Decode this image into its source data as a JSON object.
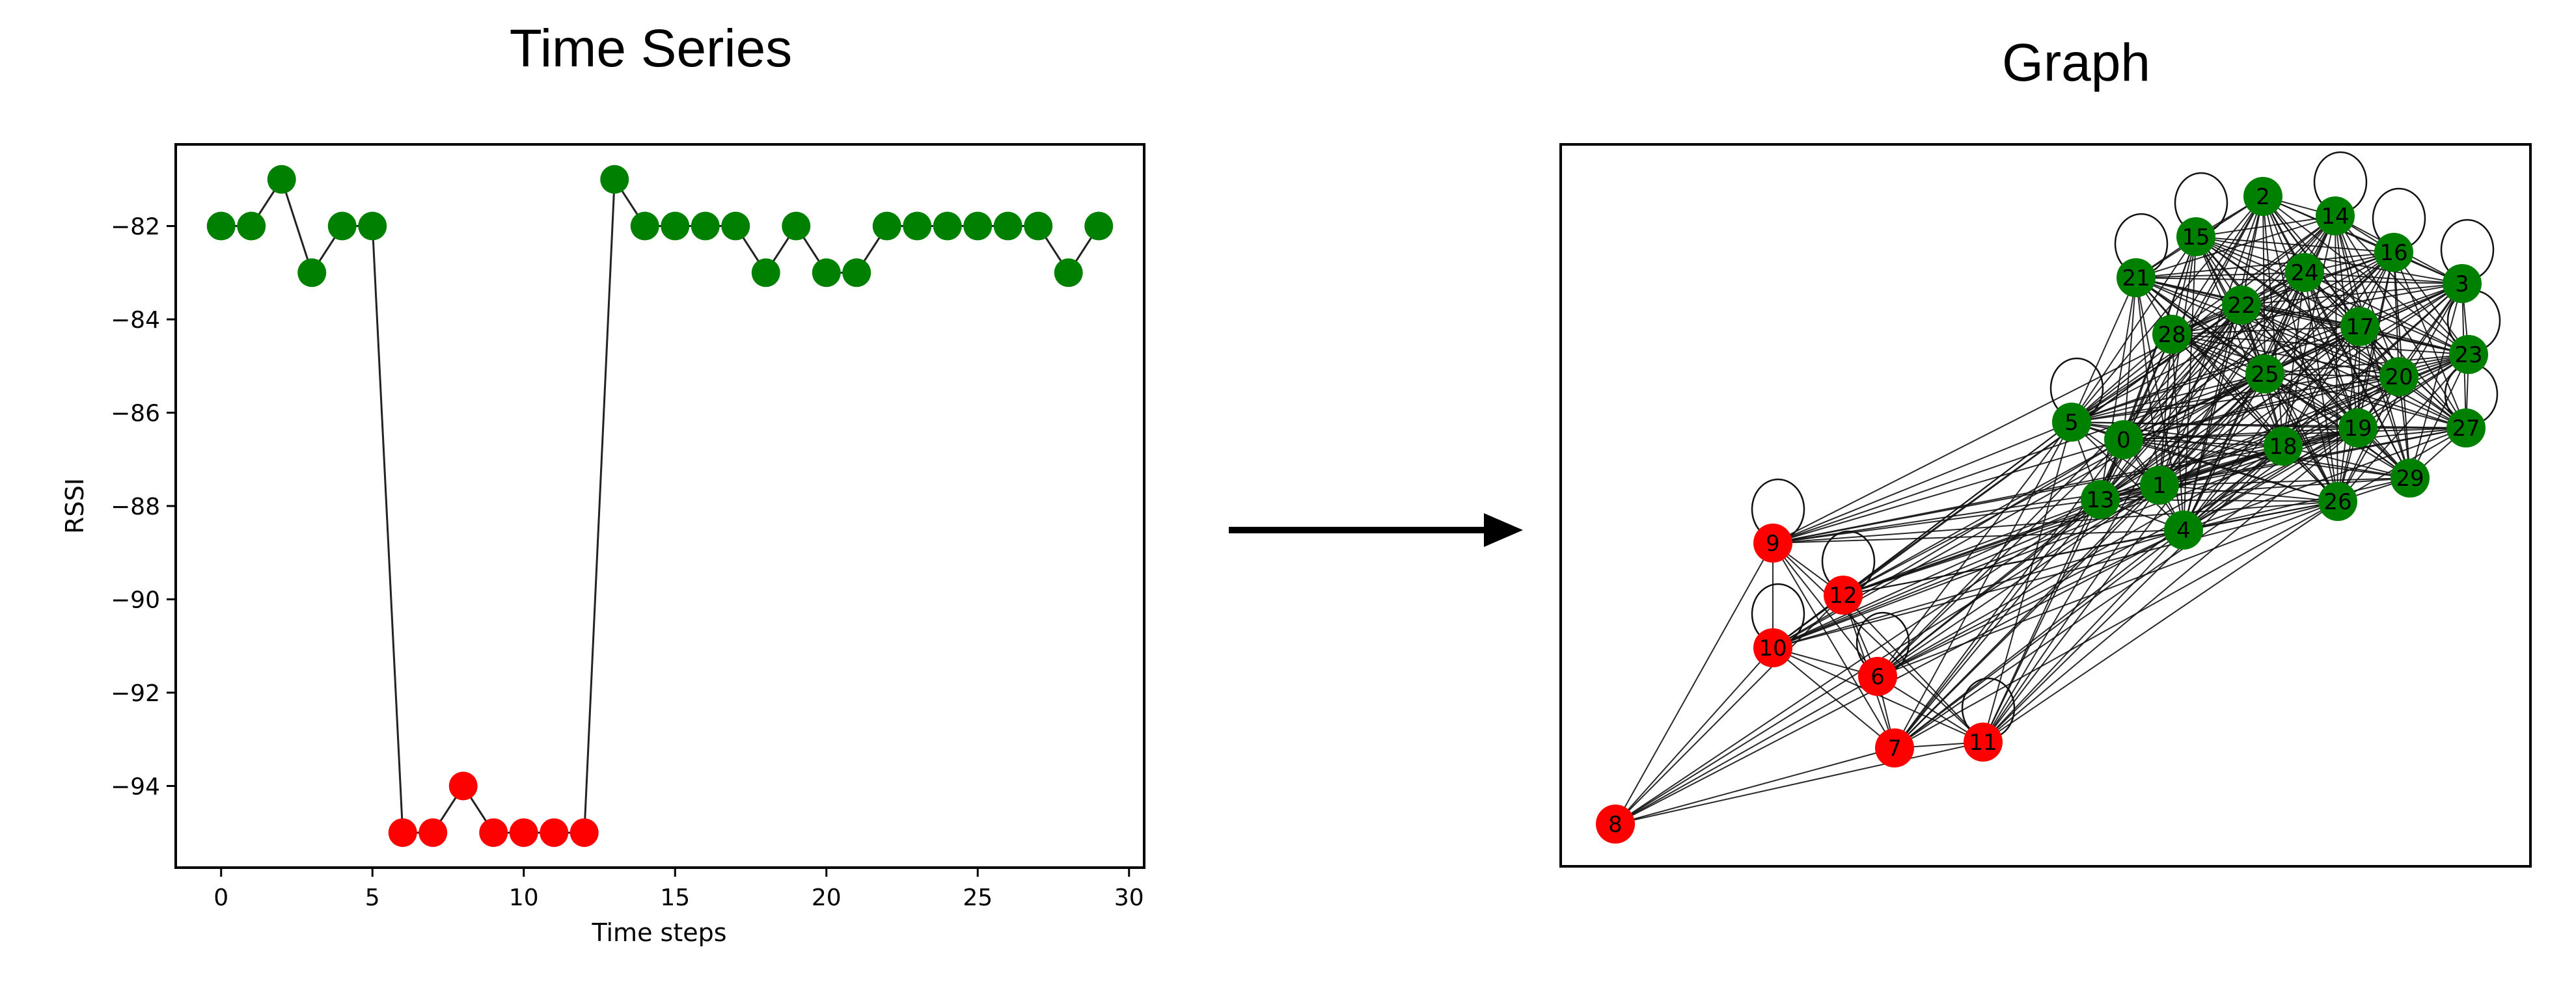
{
  "titles": {
    "left": "Time Series",
    "right": "Graph"
  },
  "colors": {
    "normal": "#008000",
    "anomaly": "#ff0000",
    "line": "#000000"
  },
  "chart_data": [
    {
      "type": "line",
      "title": "Time Series",
      "xlabel": "Time steps",
      "ylabel": "RSSI",
      "xlim": [
        -1.5,
        30.5
      ],
      "ylim": [
        -95.75,
        -80.25
      ],
      "xticks": [
        0,
        5,
        10,
        15,
        20,
        25,
        30
      ],
      "yticks": [
        -82,
        -84,
        -86,
        -88,
        -90,
        -92,
        -94
      ],
      "grid": false,
      "x": [
        0,
        1,
        2,
        3,
        4,
        5,
        6,
        7,
        8,
        9,
        10,
        11,
        12,
        13,
        14,
        15,
        16,
        17,
        18,
        19,
        20,
        21,
        22,
        23,
        24,
        25,
        26,
        27,
        28,
        29
      ],
      "values": [
        -82,
        -82,
        -81,
        -83,
        -82,
        -82,
        -95,
        -95,
        -94,
        -95,
        -95,
        -95,
        -95,
        -81,
        -82,
        -82,
        -82,
        -82,
        -83,
        -82,
        -83,
        -83,
        -82,
        -82,
        -82,
        -82,
        -82,
        -82,
        -83,
        -82
      ],
      "point_classes": [
        "normal",
        "normal",
        "normal",
        "normal",
        "normal",
        "normal",
        "anomaly",
        "anomaly",
        "anomaly",
        "anomaly",
        "anomaly",
        "anomaly",
        "anomaly",
        "normal",
        "normal",
        "normal",
        "normal",
        "normal",
        "normal",
        "normal",
        "normal",
        "normal",
        "normal",
        "normal",
        "normal",
        "normal",
        "normal",
        "normal",
        "normal",
        "normal"
      ]
    },
    {
      "type": "network",
      "title": "Graph",
      "nodes": [
        {
          "id": "0",
          "class": "normal"
        },
        {
          "id": "1",
          "class": "normal"
        },
        {
          "id": "2",
          "class": "normal"
        },
        {
          "id": "3",
          "class": "normal"
        },
        {
          "id": "4",
          "class": "normal"
        },
        {
          "id": "5",
          "class": "normal"
        },
        {
          "id": "6",
          "class": "anomaly"
        },
        {
          "id": "7",
          "class": "anomaly"
        },
        {
          "id": "8",
          "class": "anomaly"
        },
        {
          "id": "9",
          "class": "anomaly"
        },
        {
          "id": "10",
          "class": "anomaly"
        },
        {
          "id": "11",
          "class": "anomaly"
        },
        {
          "id": "12",
          "class": "anomaly"
        },
        {
          "id": "13",
          "class": "normal"
        },
        {
          "id": "14",
          "class": "normal"
        },
        {
          "id": "15",
          "class": "normal"
        },
        {
          "id": "16",
          "class": "normal"
        },
        {
          "id": "17",
          "class": "normal"
        },
        {
          "id": "18",
          "class": "normal"
        },
        {
          "id": "19",
          "class": "normal"
        },
        {
          "id": "20",
          "class": "normal"
        },
        {
          "id": "21",
          "class": "normal"
        },
        {
          "id": "22",
          "class": "normal"
        },
        {
          "id": "23",
          "class": "normal"
        },
        {
          "id": "24",
          "class": "normal"
        },
        {
          "id": "25",
          "class": "normal"
        },
        {
          "id": "26",
          "class": "normal"
        },
        {
          "id": "27",
          "class": "normal"
        },
        {
          "id": "28",
          "class": "normal"
        },
        {
          "id": "29",
          "class": "normal"
        }
      ],
      "self_loops": [
        "5",
        "9",
        "10",
        "12",
        "6",
        "11",
        "21",
        "15",
        "14",
        "16",
        "3",
        "23",
        "27"
      ]
    }
  ]
}
